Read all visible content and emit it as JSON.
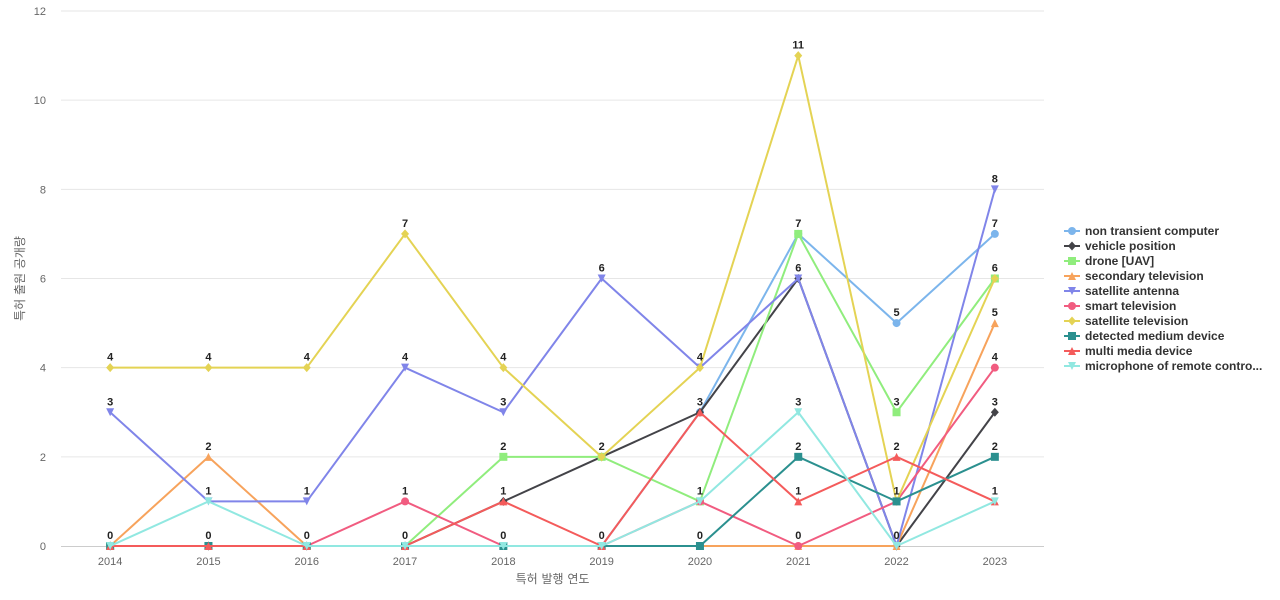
{
  "chart_data": {
    "type": "line",
    "title": "",
    "xlabel": "특허 발행 연도",
    "ylabel": "특허 출원 공개량",
    "ylim": [
      0,
      12
    ],
    "yticks": [
      0,
      2,
      4,
      6,
      8,
      10,
      12
    ],
    "grid": true,
    "legend_position": "right",
    "categories": [
      "2014",
      "2015",
      "2016",
      "2017",
      "2018",
      "2019",
      "2020",
      "2021",
      "2022",
      "2023"
    ],
    "series": [
      {
        "name": "non transient computer",
        "color": "#7cb5ec",
        "marker": "circle",
        "values": [
          0,
          0,
          0,
          0,
          0,
          0,
          3,
          7,
          5,
          7
        ]
      },
      {
        "name": "vehicle position",
        "color": "#434348",
        "marker": "diamond",
        "values": [
          0,
          0,
          0,
          0,
          1,
          2,
          3,
          6,
          0,
          3
        ]
      },
      {
        "name": "drone [UAV]",
        "color": "#90ed7d",
        "marker": "square",
        "values": [
          0,
          0,
          0,
          0,
          2,
          2,
          1,
          7,
          3,
          6
        ]
      },
      {
        "name": "secondary television",
        "color": "#f7a35c",
        "marker": "triangle",
        "values": [
          0,
          2,
          0,
          0,
          0,
          0,
          0,
          0,
          0,
          5
        ]
      },
      {
        "name": "satellite antenna",
        "color": "#8085e9",
        "marker": "triangle-down",
        "values": [
          3,
          1,
          1,
          4,
          3,
          6,
          4,
          6,
          0,
          8
        ]
      },
      {
        "name": "smart television",
        "color": "#f15c80",
        "marker": "circle",
        "values": [
          0,
          0,
          0,
          1,
          0,
          0,
          1,
          0,
          1,
          4
        ]
      },
      {
        "name": "satellite television",
        "color": "#e4d354",
        "marker": "diamond",
        "values": [
          4,
          4,
          4,
          7,
          4,
          2,
          4,
          11,
          1,
          6
        ]
      },
      {
        "name": "detected medium device",
        "color": "#2b908f",
        "marker": "square",
        "values": [
          0,
          0,
          0,
          0,
          0,
          0,
          0,
          2,
          1,
          2
        ]
      },
      {
        "name": "multi media device",
        "color": "#f45b5b",
        "marker": "triangle",
        "values": [
          0,
          0,
          0,
          0,
          1,
          0,
          3,
          1,
          2,
          1
        ]
      },
      {
        "name": "microphone of remote contro...",
        "color": "#91e8e1",
        "marker": "triangle-down",
        "values": [
          0,
          1,
          0,
          0,
          0,
          0,
          1,
          3,
          0,
          1
        ]
      }
    ],
    "data_labels": [
      {
        "series": 6,
        "x": "2014",
        "value": "4"
      },
      {
        "series": 4,
        "x": "2014",
        "value": "3"
      },
      {
        "series": 0,
        "x": "2014",
        "value": "0"
      },
      {
        "series": 6,
        "x": "2015",
        "value": "4"
      },
      {
        "series": 3,
        "x": "2015",
        "value": "2"
      },
      {
        "series": 4,
        "x": "2015",
        "value": "1"
      },
      {
        "series": 0,
        "x": "2015",
        "value": "0"
      },
      {
        "series": 6,
        "x": "2016",
        "value": "4"
      },
      {
        "series": 4,
        "x": "2016",
        "value": "1"
      },
      {
        "series": 0,
        "x": "2016",
        "value": "0"
      },
      {
        "series": 6,
        "x": "2017",
        "value": "7"
      },
      {
        "series": 4,
        "x": "2017",
        "value": "4"
      },
      {
        "series": 5,
        "x": "2017",
        "value": "1"
      },
      {
        "series": 0,
        "x": "2017",
        "value": "0"
      },
      {
        "series": 6,
        "x": "2018",
        "value": "4"
      },
      {
        "series": 4,
        "x": "2018",
        "value": "3"
      },
      {
        "series": 2,
        "x": "2018",
        "value": "2"
      },
      {
        "series": 1,
        "x": "2018",
        "value": "1"
      },
      {
        "series": 0,
        "x": "2018",
        "value": "0"
      },
      {
        "series": 4,
        "x": "2019",
        "value": "6"
      },
      {
        "series": 6,
        "x": "2019",
        "value": "2"
      },
      {
        "series": 0,
        "x": "2019",
        "value": "0"
      },
      {
        "series": 6,
        "x": "2020",
        "value": "4"
      },
      {
        "series": 0,
        "x": "2020",
        "value": "3"
      },
      {
        "series": 2,
        "x": "2020",
        "value": "1"
      },
      {
        "series": 3,
        "x": "2020",
        "value": "0"
      },
      {
        "series": 6,
        "x": "2021",
        "value": "11"
      },
      {
        "series": 0,
        "x": "2021",
        "value": "7"
      },
      {
        "series": 1,
        "x": "2021",
        "value": "6"
      },
      {
        "series": 9,
        "x": "2021",
        "value": "3"
      },
      {
        "series": 7,
        "x": "2021",
        "value": "2"
      },
      {
        "series": 8,
        "x": "2021",
        "value": "1"
      },
      {
        "series": 5,
        "x": "2021",
        "value": "0"
      },
      {
        "series": 0,
        "x": "2022",
        "value": "5"
      },
      {
        "series": 2,
        "x": "2022",
        "value": "3"
      },
      {
        "series": 8,
        "x": "2022",
        "value": "2"
      },
      {
        "series": 5,
        "x": "2022",
        "value": "1"
      },
      {
        "series": 9,
        "x": "2022",
        "value": "0"
      },
      {
        "series": 4,
        "x": "2023",
        "value": "8"
      },
      {
        "series": 0,
        "x": "2023",
        "value": "7"
      },
      {
        "series": 2,
        "x": "2023",
        "value": "6"
      },
      {
        "series": 3,
        "x": "2023",
        "value": "5"
      },
      {
        "series": 5,
        "x": "2023",
        "value": "4"
      },
      {
        "series": 1,
        "x": "2023",
        "value": "3"
      },
      {
        "series": 7,
        "x": "2023",
        "value": "2"
      },
      {
        "series": 9,
        "x": "2023",
        "value": "1"
      }
    ]
  }
}
